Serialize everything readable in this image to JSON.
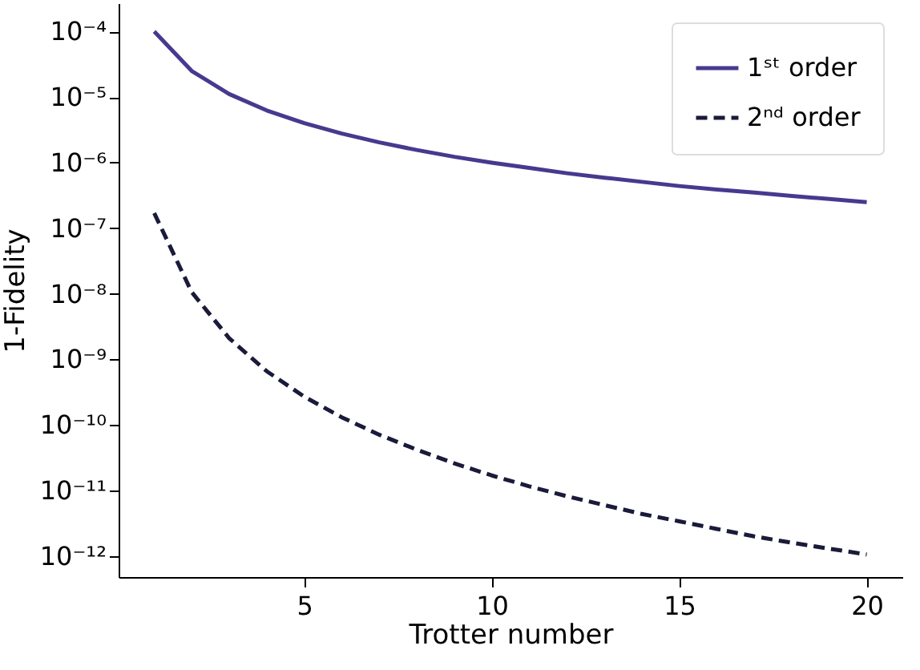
{
  "chart_data": {
    "type": "line",
    "xlabel": "Trotter number",
    "ylabel": "1-Fidelity",
    "log": "y",
    "x": [
      1,
      2,
      3,
      4,
      5,
      6,
      7,
      8,
      9,
      10,
      11,
      12,
      13,
      14,
      15,
      16,
      17,
      18,
      19,
      20
    ],
    "series": [
      {
        "name": "1ˢᵗ order",
        "color": "#463a8f",
        "line_style": "solid",
        "values": [
          0.0001,
          2.5e-05,
          1.11e-05,
          6.25e-06,
          4e-06,
          2.78e-06,
          2.04e-06,
          1.56e-06,
          1.23e-06,
          1e-06,
          8.3e-07,
          6.9e-07,
          5.9e-07,
          5.1e-07,
          4.4e-07,
          3.9e-07,
          3.5e-07,
          3.1e-07,
          2.8e-07,
          2.5e-07
        ]
      },
      {
        "name": "2ⁿᵈ order",
        "color": "#1a1a3a",
        "line_style": "dashed",
        "values": [
          1.7e-07,
          1.06e-08,
          2.1e-09,
          6.6e-10,
          2.7e-10,
          1.31e-10,
          7.1e-11,
          4.2e-11,
          2.6e-11,
          1.7e-11,
          1.16e-11,
          8.2e-12,
          6e-12,
          4.4e-12,
          3.4e-12,
          2.6e-12,
          2e-12,
          1.6e-12,
          1.3e-12,
          1.06e-12
        ]
      }
    ],
    "xlim": [
      0.05,
      20.95
    ],
    "xticks": [
      5,
      10,
      15,
      20
    ],
    "ylim": [
      4.8e-13,
      0.00027
    ],
    "yticks": [
      {
        "value": 0.0001,
        "label": "10⁻⁴"
      },
      {
        "value": 1e-05,
        "label": "10⁻⁵"
      },
      {
        "value": 1e-06,
        "label": "10⁻⁶"
      },
      {
        "value": 1e-07,
        "label": "10⁻⁷"
      },
      {
        "value": 1e-08,
        "label": "10⁻⁸"
      },
      {
        "value": 1e-09,
        "label": "10⁻⁹"
      },
      {
        "value": 1e-10,
        "label": "10⁻¹⁰"
      },
      {
        "value": 1e-11,
        "label": "10⁻¹¹"
      },
      {
        "value": 1e-12,
        "label": "10⁻¹²"
      }
    ],
    "grid": false,
    "legend": "top right"
  }
}
